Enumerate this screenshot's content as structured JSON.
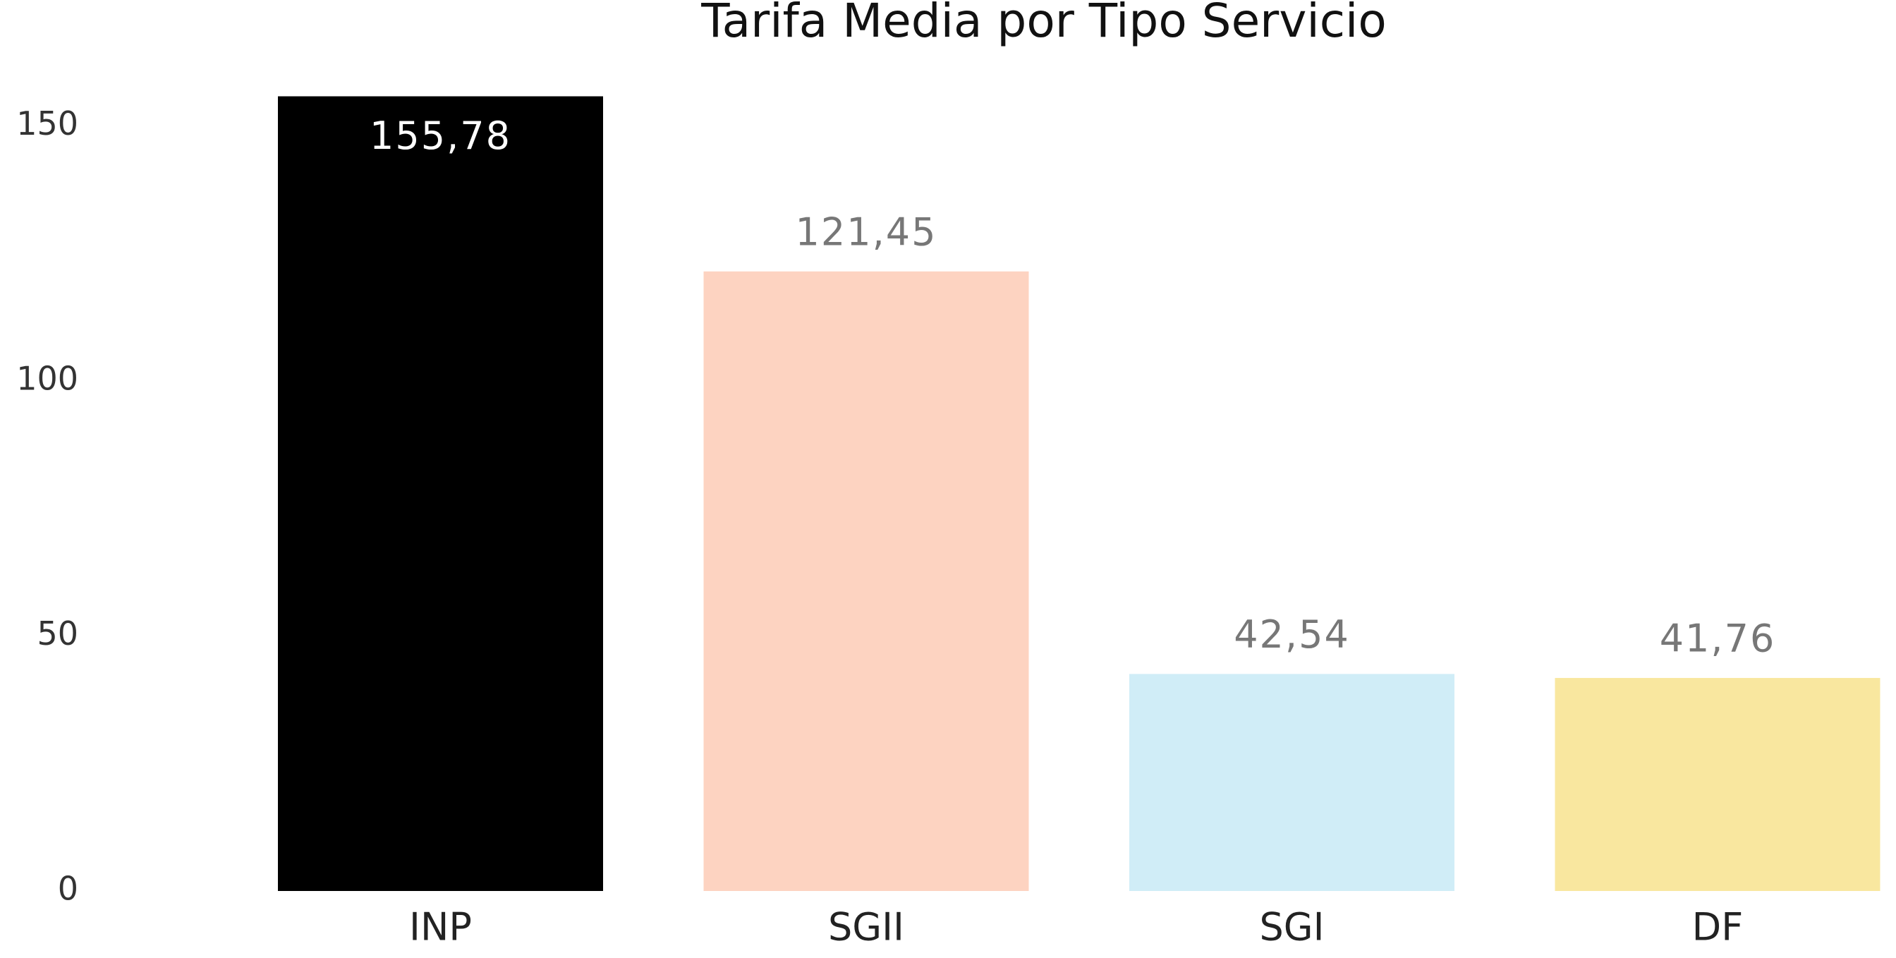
{
  "chart_data": {
    "type": "bar",
    "title": "Tarifa Media por Tipo Servicio",
    "categories": [
      "INP",
      "SGII",
      "SGI",
      "DF"
    ],
    "values": [
      155.78,
      121.45,
      42.54,
      41.76
    ],
    "value_labels": [
      "155,78",
      "121,45",
      "42,54",
      "41,76"
    ],
    "colors": [
      "#000000",
      "#fdd3c1",
      "#d0edf7",
      "#f9e79f"
    ],
    "ylim": [
      0,
      160
    ],
    "yticks": [
      0,
      50,
      100,
      150
    ],
    "grid": false
  }
}
